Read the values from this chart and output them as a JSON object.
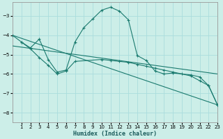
{
  "xlabel": "Humidex (Indice chaleur)",
  "bg_color": "#cceee8",
  "grid_color": "#aadddd",
  "line_color": "#1a7a6e",
  "xlim": [
    0,
    23
  ],
  "ylim": [
    -8.5,
    -2.3
  ],
  "yticks": [
    -8,
    -7,
    -6,
    -5,
    -4,
    -3
  ],
  "xticks": [
    1,
    2,
    3,
    4,
    5,
    6,
    7,
    8,
    9,
    10,
    11,
    12,
    13,
    14,
    15,
    16,
    17,
    18,
    19,
    20,
    21,
    22,
    23
  ],
  "series1_x": [
    0,
    1,
    2,
    3,
    4,
    5,
    6,
    7,
    8,
    9,
    10,
    11,
    12,
    13,
    14,
    15,
    16,
    17,
    18,
    20,
    21,
    22,
    23
  ],
  "series1_y": [
    -4.0,
    -4.35,
    -4.65,
    -4.2,
    -5.25,
    -5.9,
    -5.8,
    -4.35,
    -3.6,
    -3.15,
    -2.7,
    -2.55,
    -2.75,
    -3.2,
    -5.05,
    -5.3,
    -5.85,
    -6.0,
    -5.95,
    -6.05,
    -6.15,
    -6.6,
    -7.6
  ],
  "series2_x": [
    1,
    2,
    3,
    4,
    5,
    6,
    7,
    10,
    11,
    12,
    13,
    14,
    15,
    16,
    17,
    18,
    19,
    20,
    21,
    22,
    23
  ],
  "series2_y": [
    -4.35,
    -4.7,
    -5.15,
    -5.55,
    -6.0,
    -5.85,
    -5.35,
    -5.25,
    -5.3,
    -5.35,
    -5.4,
    -5.5,
    -5.6,
    -5.7,
    -5.8,
    -5.9,
    -6.0,
    -6.1,
    -6.35,
    -6.6,
    -7.6
  ],
  "series3_x": [
    0,
    23
  ],
  "series3_y": [
    -4.0,
    -7.6
  ],
  "series4_x": [
    0,
    23
  ],
  "series4_y": [
    -4.55,
    -6.0
  ]
}
